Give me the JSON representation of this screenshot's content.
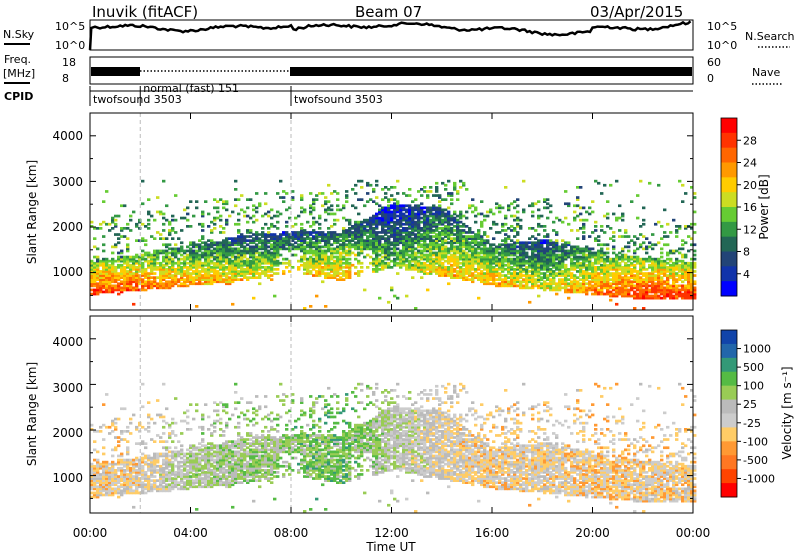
{
  "header": {
    "station": "Inuvik (fitACF)",
    "beam": "Beam 07",
    "date": "03/Apr/2015"
  },
  "strips": {
    "nsky_label": "N.Sky",
    "nsky_ticks": [
      "10^5",
      "10^0"
    ],
    "nsearch_label": "N.Search",
    "nsearch_ticks": [
      "10^5",
      "10^0"
    ],
    "freq_label_line1": "Freq.",
    "freq_label_line2": "[MHz]",
    "freq_ticks": [
      "18",
      "8"
    ],
    "nave_label": "Nave",
    "nave_ticks": [
      "60",
      "0"
    ],
    "cpid_label": "CPID",
    "cpid_segments": [
      {
        "label": "twofsound 3503",
        "start_h": 0,
        "end_h": 2
      },
      {
        "label": "normal (fast) 151",
        "start_h": 2,
        "end_h": 8
      },
      {
        "label": "twofsound 3503",
        "start_h": 8,
        "end_h": 24
      }
    ]
  },
  "power_panel": {
    "ylabel": "Slant Range [km]",
    "yticks": [
      "4000",
      "3000",
      "2000",
      "1000"
    ],
    "cbar_label": "Power [dB]",
    "cbar_ticks": [
      "28",
      "24",
      "20",
      "16",
      "12",
      "8",
      "4"
    ],
    "cbar_colors": [
      "#ff0000",
      "#ff3300",
      "#ff6600",
      "#ff9900",
      "#ffcc00",
      "#ccdd22",
      "#66cc33",
      "#339944",
      "#226655",
      "#224477",
      "#1133aa",
      "#0000ff"
    ]
  },
  "velocity_panel": {
    "ylabel": "Slant Range [km]",
    "yticks": [
      "4000",
      "3000",
      "2000",
      "1000"
    ],
    "cbar_label": "Velocity [m s⁻¹]",
    "cbar_ticks": [
      "1000",
      "500",
      "100",
      "25",
      "-25",
      "-100",
      "-500",
      "-1000"
    ],
    "cbar_colors": [
      "#1144aa",
      "#2266aa",
      "#339977",
      "#55bb44",
      "#99cc55",
      "#bbbbbb",
      "#cccccc",
      "#ffcc66",
      "#ff9933",
      "#ff7722",
      "#ff4400",
      "#ff0000"
    ]
  },
  "xaxis": {
    "label": "Time UT",
    "ticks": [
      "00:00",
      "04:00",
      "08:00",
      "12:00",
      "16:00",
      "20:00",
      "00:00"
    ]
  },
  "chart_data": {
    "type": "heatmap",
    "title": "Inuvik (fitACF)  Beam 07  03/Apr/2015",
    "xlabel": "Time UT",
    "ylabel": "Slant Range [km]",
    "x_range_hours": [
      0,
      24
    ],
    "y_range_km": [
      180,
      4500
    ],
    "panels": [
      "Power [dB]",
      "Velocity [m s^-1]"
    ],
    "power_range_db": [
      0,
      30
    ],
    "velocity_range_ms": [
      -1000,
      1000
    ],
    "approx_backscatter": [
      {
        "time_h": 0,
        "main_band_km": [
          500,
          1200
        ],
        "power_db": 28,
        "velocity_ms": -200
      },
      {
        "time_h": 2,
        "main_band_km": [
          600,
          1400
        ],
        "power_db": 26,
        "velocity_ms": -150
      },
      {
        "time_h": 4,
        "main_band_km": [
          700,
          1600
        ],
        "power_db": 22,
        "velocity_ms": 150
      },
      {
        "time_h": 6,
        "main_band_km": [
          800,
          1800
        ],
        "power_db": 20,
        "velocity_ms": 200
      },
      {
        "time_h": 8,
        "main_band_km": [
          1000,
          1900
        ],
        "power_db": 18,
        "velocity_ms": 300
      },
      {
        "time_h": 10,
        "main_band_km": [
          800,
          1900
        ],
        "power_db": 22,
        "velocity_ms": 400
      },
      {
        "time_h": 12,
        "main_band_km": [
          1100,
          2500
        ],
        "power_db": 14,
        "velocity_ms": 100
      },
      {
        "time_h": 14,
        "main_band_km": [
          900,
          2400
        ],
        "power_db": 20,
        "velocity_ms": -100
      },
      {
        "time_h": 16,
        "main_band_km": [
          700,
          1600
        ],
        "power_db": 22,
        "velocity_ms": -200
      },
      {
        "time_h": 18,
        "main_band_km": [
          600,
          1700
        ],
        "power_db": 18,
        "velocity_ms": -150
      },
      {
        "time_h": 20,
        "main_band_km": [
          500,
          1500
        ],
        "power_db": 24,
        "velocity_ms": -250
      },
      {
        "time_h": 22,
        "main_band_km": [
          400,
          1300
        ],
        "power_db": 28,
        "velocity_ms": -200
      },
      {
        "time_h": 24,
        "main_band_km": [
          400,
          1200
        ],
        "power_db": 28,
        "velocity_ms": -200
      }
    ]
  }
}
